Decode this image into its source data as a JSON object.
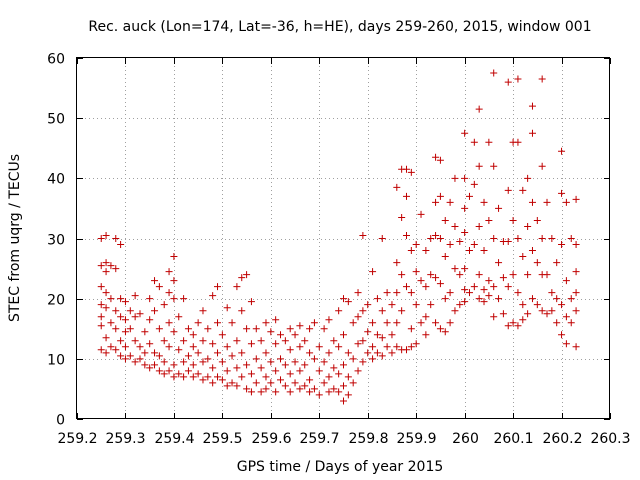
{
  "chart_data": {
    "type": "scatter",
    "title": "Rec. auck (Lon=174, Lat=-36, h=HE), days 259-260, 2015, window 001",
    "xlabel": "GPS time / Days of year 2015",
    "ylabel": "STEC from uqrg / TECUs",
    "xlim": [
      259.2,
      260.3
    ],
    "ylim": [
      0,
      60
    ],
    "xticks": [
      "259.2",
      "259.3",
      "259.4",
      "259.5",
      "259.6",
      "259.7",
      "259.8",
      "259.9",
      "260",
      "260.1",
      "260.2",
      "260.3"
    ],
    "yticks": [
      "0",
      "10",
      "20",
      "30",
      "40",
      "50",
      "60"
    ],
    "grid": true,
    "marker": "plus",
    "color": "#c00000",
    "points": [
      [
        259.25,
        30.0
      ],
      [
        259.25,
        25.5
      ],
      [
        259.25,
        22.0
      ],
      [
        259.25,
        19.0
      ],
      [
        259.25,
        17.0
      ],
      [
        259.25,
        15.5
      ],
      [
        259.25,
        11.5
      ],
      [
        259.26,
        30.5
      ],
      [
        259.26,
        26.0
      ],
      [
        259.26,
        24.5
      ],
      [
        259.26,
        21.0
      ],
      [
        259.26,
        18.5
      ],
      [
        259.26,
        13.5
      ],
      [
        259.26,
        11.0
      ],
      [
        259.27,
        25.5
      ],
      [
        259.27,
        20.0
      ],
      [
        259.27,
        16.0
      ],
      [
        259.27,
        12.0
      ],
      [
        259.28,
        30.0
      ],
      [
        259.28,
        25.0
      ],
      [
        259.28,
        18.0
      ],
      [
        259.28,
        15.0
      ],
      [
        259.28,
        11.5
      ],
      [
        259.29,
        29.0
      ],
      [
        259.29,
        20.0
      ],
      [
        259.29,
        17.0
      ],
      [
        259.29,
        13.0
      ],
      [
        259.29,
        10.5
      ],
      [
        259.3,
        19.5
      ],
      [
        259.3,
        16.5
      ],
      [
        259.3,
        14.5
      ],
      [
        259.3,
        12.0
      ],
      [
        259.3,
        10.0
      ],
      [
        259.31,
        18.0
      ],
      [
        259.31,
        15.0
      ],
      [
        259.31,
        10.5
      ],
      [
        259.32,
        20.5
      ],
      [
        259.32,
        17.0
      ],
      [
        259.32,
        13.0
      ],
      [
        259.32,
        9.5
      ],
      [
        259.33,
        17.5
      ],
      [
        259.33,
        12.0
      ],
      [
        259.33,
        10.0
      ],
      [
        259.34,
        14.5
      ],
      [
        259.34,
        11.0
      ],
      [
        259.34,
        9.0
      ],
      [
        259.35,
        20.0
      ],
      [
        259.35,
        16.5
      ],
      [
        259.35,
        12.5
      ],
      [
        259.35,
        8.5
      ],
      [
        259.36,
        23.0
      ],
      [
        259.36,
        18.0
      ],
      [
        259.36,
        11.0
      ],
      [
        259.36,
        9.0
      ],
      [
        259.37,
        22.0
      ],
      [
        259.37,
        15.0
      ],
      [
        259.37,
        10.5
      ],
      [
        259.37,
        8.0
      ],
      [
        259.38,
        19.0
      ],
      [
        259.38,
        13.0
      ],
      [
        259.38,
        9.5
      ],
      [
        259.38,
        7.5
      ],
      [
        259.39,
        24.5
      ],
      [
        259.39,
        21.0
      ],
      [
        259.39,
        16.0
      ],
      [
        259.39,
        12.0
      ],
      [
        259.39,
        8.0
      ],
      [
        259.4,
        27.0
      ],
      [
        259.4,
        23.0
      ],
      [
        259.4,
        20.0
      ],
      [
        259.4,
        14.5
      ],
      [
        259.4,
        9.0
      ],
      [
        259.4,
        7.0
      ],
      [
        259.41,
        17.0
      ],
      [
        259.41,
        11.5
      ],
      [
        259.41,
        7.5
      ],
      [
        259.42,
        20.0
      ],
      [
        259.42,
        13.0
      ],
      [
        259.42,
        9.5
      ],
      [
        259.42,
        7.0
      ],
      [
        259.43,
        15.0
      ],
      [
        259.43,
        10.5
      ],
      [
        259.43,
        8.0
      ],
      [
        259.44,
        14.0
      ],
      [
        259.44,
        12.0
      ],
      [
        259.44,
        9.0
      ],
      [
        259.44,
        7.0
      ],
      [
        259.45,
        16.0
      ],
      [
        259.45,
        11.0
      ],
      [
        259.45,
        7.5
      ],
      [
        259.46,
        18.0
      ],
      [
        259.46,
        13.0
      ],
      [
        259.46,
        9.5
      ],
      [
        259.46,
        6.5
      ],
      [
        259.47,
        15.0
      ],
      [
        259.47,
        10.0
      ],
      [
        259.47,
        7.0
      ],
      [
        259.48,
        20.5
      ],
      [
        259.48,
        12.5
      ],
      [
        259.48,
        8.5
      ],
      [
        259.48,
        6.0
      ],
      [
        259.49,
        22.0
      ],
      [
        259.49,
        16.0
      ],
      [
        259.49,
        11.0
      ],
      [
        259.49,
        7.0
      ],
      [
        259.5,
        14.0
      ],
      [
        259.5,
        9.5
      ],
      [
        259.5,
        6.5
      ],
      [
        259.51,
        18.5
      ],
      [
        259.51,
        12.0
      ],
      [
        259.51,
        8.0
      ],
      [
        259.51,
        5.5
      ],
      [
        259.52,
        16.0
      ],
      [
        259.52,
        10.5
      ],
      [
        259.52,
        6.0
      ],
      [
        259.53,
        22.0
      ],
      [
        259.53,
        13.0
      ],
      [
        259.53,
        8.5
      ],
      [
        259.53,
        5.5
      ],
      [
        259.54,
        23.5
      ],
      [
        259.54,
        18.0
      ],
      [
        259.54,
        11.0
      ],
      [
        259.54,
        7.0
      ],
      [
        259.55,
        24.0
      ],
      [
        259.55,
        15.0
      ],
      [
        259.55,
        9.0
      ],
      [
        259.55,
        5.0
      ],
      [
        259.56,
        19.5
      ],
      [
        259.56,
        12.5
      ],
      [
        259.56,
        7.5
      ],
      [
        259.56,
        4.5
      ],
      [
        259.57,
        15.0
      ],
      [
        259.57,
        10.0
      ],
      [
        259.57,
        6.0
      ],
      [
        259.58,
        13.0
      ],
      [
        259.58,
        8.5
      ],
      [
        259.58,
        4.5
      ],
      [
        259.59,
        16.0
      ],
      [
        259.59,
        11.0
      ],
      [
        259.59,
        7.0
      ],
      [
        259.59,
        5.0
      ],
      [
        259.6,
        14.5
      ],
      [
        259.6,
        9.5
      ],
      [
        259.6,
        6.0
      ],
      [
        259.61,
        16.5
      ],
      [
        259.61,
        12.5
      ],
      [
        259.61,
        8.0
      ],
      [
        259.61,
        4.5
      ],
      [
        259.62,
        14.0
      ],
      [
        259.62,
        10.0
      ],
      [
        259.62,
        6.5
      ],
      [
        259.63,
        13.0
      ],
      [
        259.63,
        9.0
      ],
      [
        259.63,
        5.5
      ],
      [
        259.64,
        15.0
      ],
      [
        259.64,
        11.5
      ],
      [
        259.64,
        7.5
      ],
      [
        259.64,
        4.5
      ],
      [
        259.65,
        14.0
      ],
      [
        259.65,
        9.5
      ],
      [
        259.65,
        6.0
      ],
      [
        259.66,
        15.5
      ],
      [
        259.66,
        12.0
      ],
      [
        259.66,
        8.0
      ],
      [
        259.66,
        5.0
      ],
      [
        259.67,
        13.0
      ],
      [
        259.67,
        9.0
      ],
      [
        259.67,
        5.5
      ],
      [
        259.68,
        15.0
      ],
      [
        259.68,
        11.0
      ],
      [
        259.68,
        6.5
      ],
      [
        259.68,
        4.5
      ],
      [
        259.69,
        16.0
      ],
      [
        259.69,
        10.0
      ],
      [
        259.69,
        5.0
      ],
      [
        259.7,
        12.0
      ],
      [
        259.7,
        8.0
      ],
      [
        259.7,
        4.0
      ],
      [
        259.71,
        15.0
      ],
      [
        259.71,
        9.5
      ],
      [
        259.71,
        6.0
      ],
      [
        259.72,
        16.5
      ],
      [
        259.72,
        11.0
      ],
      [
        259.72,
        7.0
      ],
      [
        259.72,
        4.5
      ],
      [
        259.73,
        13.0
      ],
      [
        259.73,
        8.5
      ],
      [
        259.73,
        5.0
      ],
      [
        259.74,
        18.0
      ],
      [
        259.74,
        12.0
      ],
      [
        259.74,
        7.5
      ],
      [
        259.74,
        4.5
      ],
      [
        259.75,
        20.0
      ],
      [
        259.75,
        14.0
      ],
      [
        259.75,
        9.0
      ],
      [
        259.75,
        5.5
      ],
      [
        259.75,
        3.0
      ],
      [
        259.76,
        19.5
      ],
      [
        259.76,
        11.0
      ],
      [
        259.76,
        7.0
      ],
      [
        259.76,
        4.0
      ],
      [
        259.77,
        16.0
      ],
      [
        259.77,
        10.0
      ],
      [
        259.77,
        6.0
      ],
      [
        259.78,
        21.0
      ],
      [
        259.78,
        17.0
      ],
      [
        259.78,
        12.5
      ],
      [
        259.78,
        8.0
      ],
      [
        259.79,
        30.5
      ],
      [
        259.79,
        18.0
      ],
      [
        259.79,
        13.0
      ],
      [
        259.79,
        9.5
      ],
      [
        259.8,
        19.0
      ],
      [
        259.8,
        14.5
      ],
      [
        259.8,
        11.0
      ],
      [
        259.81,
        24.5
      ],
      [
        259.81,
        16.0
      ],
      [
        259.81,
        12.0
      ],
      [
        259.81,
        10.0
      ],
      [
        259.82,
        20.0
      ],
      [
        259.82,
        14.0
      ],
      [
        259.82,
        11.0
      ],
      [
        259.83,
        30.0
      ],
      [
        259.83,
        18.0
      ],
      [
        259.83,
        13.5
      ],
      [
        259.83,
        10.5
      ],
      [
        259.84,
        21.0
      ],
      [
        259.84,
        16.0
      ],
      [
        259.84,
        12.0
      ],
      [
        259.85,
        19.0
      ],
      [
        259.85,
        14.0
      ],
      [
        259.85,
        11.0
      ],
      [
        259.86,
        38.5
      ],
      [
        259.86,
        26.0
      ],
      [
        259.86,
        21.0
      ],
      [
        259.86,
        16.0
      ],
      [
        259.86,
        12.0
      ],
      [
        259.87,
        41.5
      ],
      [
        259.87,
        33.5
      ],
      [
        259.87,
        24.0
      ],
      [
        259.87,
        18.0
      ],
      [
        259.87,
        11.5
      ],
      [
        259.88,
        41.5
      ],
      [
        259.88,
        37.0
      ],
      [
        259.88,
        30.5
      ],
      [
        259.88,
        22.0
      ],
      [
        259.88,
        11.5
      ],
      [
        259.89,
        41.0
      ],
      [
        259.89,
        28.0
      ],
      [
        259.89,
        21.0
      ],
      [
        259.89,
        15.0
      ],
      [
        259.89,
        12.0
      ],
      [
        259.9,
        29.0
      ],
      [
        259.9,
        24.5
      ],
      [
        259.9,
        19.0
      ],
      [
        259.9,
        12.5
      ],
      [
        259.91,
        34.0
      ],
      [
        259.91,
        23.0
      ],
      [
        259.91,
        16.0
      ],
      [
        259.92,
        28.0
      ],
      [
        259.92,
        22.0
      ],
      [
        259.92,
        17.0
      ],
      [
        259.92,
        14.0
      ],
      [
        259.93,
        30.0
      ],
      [
        259.93,
        24.0
      ],
      [
        259.93,
        19.0
      ],
      [
        259.94,
        43.5
      ],
      [
        259.94,
        36.0
      ],
      [
        259.94,
        30.5
      ],
      [
        259.94,
        23.5
      ],
      [
        259.94,
        16.0
      ],
      [
        259.95,
        43.0
      ],
      [
        259.95,
        37.0
      ],
      [
        259.95,
        30.0
      ],
      [
        259.95,
        22.5
      ],
      [
        259.95,
        15.0
      ],
      [
        259.96,
        33.0
      ],
      [
        259.96,
        27.0
      ],
      [
        259.96,
        20.0
      ],
      [
        259.96,
        14.5
      ],
      [
        259.97,
        36.0
      ],
      [
        259.97,
        29.0
      ],
      [
        259.97,
        21.0
      ],
      [
        259.97,
        16.0
      ],
      [
        259.98,
        40.0
      ],
      [
        259.98,
        32.0
      ],
      [
        259.98,
        25.0
      ],
      [
        259.98,
        18.0
      ],
      [
        259.99,
        29.5
      ],
      [
        259.99,
        24.0
      ],
      [
        259.99,
        19.0
      ],
      [
        260.0,
        47.5
      ],
      [
        260.0,
        40.0
      ],
      [
        260.0,
        35.0
      ],
      [
        260.0,
        31.0
      ],
      [
        260.0,
        25.0
      ],
      [
        260.0,
        21.5
      ],
      [
        260.0,
        19.5
      ],
      [
        260.01,
        37.0
      ],
      [
        260.01,
        28.0
      ],
      [
        260.01,
        21.0
      ],
      [
        260.02,
        46.0
      ],
      [
        260.02,
        39.0
      ],
      [
        260.02,
        29.0
      ],
      [
        260.02,
        22.0
      ],
      [
        260.03,
        51.5
      ],
      [
        260.03,
        42.0
      ],
      [
        260.03,
        32.0
      ],
      [
        260.03,
        24.0
      ],
      [
        260.03,
        20.0
      ],
      [
        260.04,
        36.0
      ],
      [
        260.04,
        28.0
      ],
      [
        260.04,
        21.5
      ],
      [
        260.04,
        19.5
      ],
      [
        260.05,
        46.0
      ],
      [
        260.05,
        33.0
      ],
      [
        260.05,
        23.0
      ],
      [
        260.05,
        20.5
      ],
      [
        260.06,
        57.5
      ],
      [
        260.06,
        42.0
      ],
      [
        260.06,
        30.0
      ],
      [
        260.06,
        22.0
      ],
      [
        260.06,
        17.0
      ],
      [
        260.07,
        35.0
      ],
      [
        260.07,
        26.0
      ],
      [
        260.07,
        20.0
      ],
      [
        260.08,
        29.5
      ],
      [
        260.08,
        23.5
      ],
      [
        260.08,
        17.5
      ],
      [
        260.09,
        56.0
      ],
      [
        260.09,
        38.0
      ],
      [
        260.09,
        29.5
      ],
      [
        260.09,
        22.0
      ],
      [
        260.09,
        15.5
      ],
      [
        260.1,
        46.0
      ],
      [
        260.1,
        33.0
      ],
      [
        260.1,
        24.0
      ],
      [
        260.1,
        16.0
      ],
      [
        260.11,
        56.5
      ],
      [
        260.11,
        46.0
      ],
      [
        260.11,
        30.0
      ],
      [
        260.11,
        21.0
      ],
      [
        260.11,
        15.5
      ],
      [
        260.12,
        38.0
      ],
      [
        260.12,
        27.0
      ],
      [
        260.12,
        19.0
      ],
      [
        260.12,
        16.5
      ],
      [
        260.13,
        40.0
      ],
      [
        260.13,
        32.0
      ],
      [
        260.13,
        24.0
      ],
      [
        260.13,
        17.5
      ],
      [
        260.14,
        52.0
      ],
      [
        260.14,
        47.5
      ],
      [
        260.14,
        36.0
      ],
      [
        260.14,
        28.0
      ],
      [
        260.14,
        20.0
      ],
      [
        260.15,
        33.0
      ],
      [
        260.15,
        26.0
      ],
      [
        260.15,
        19.0
      ],
      [
        260.16,
        56.5
      ],
      [
        260.16,
        42.0
      ],
      [
        260.16,
        30.0
      ],
      [
        260.16,
        24.0
      ],
      [
        260.16,
        18.0
      ],
      [
        260.17,
        36.0
      ],
      [
        260.17,
        24.0
      ],
      [
        260.17,
        17.5
      ],
      [
        260.18,
        30.0
      ],
      [
        260.18,
        21.0
      ],
      [
        260.18,
        18.0
      ],
      [
        260.19,
        26.0
      ],
      [
        260.19,
        20.0
      ],
      [
        260.19,
        16.0
      ],
      [
        260.2,
        44.5
      ],
      [
        260.2,
        37.5
      ],
      [
        260.2,
        29.0
      ],
      [
        260.2,
        19.0
      ],
      [
        260.2,
        14.0
      ],
      [
        260.21,
        36.0
      ],
      [
        260.21,
        23.0
      ],
      [
        260.21,
        17.0
      ],
      [
        260.21,
        12.5
      ],
      [
        260.22,
        30.0
      ],
      [
        260.22,
        20.0
      ],
      [
        260.22,
        16.0
      ],
      [
        260.23,
        36.5
      ],
      [
        260.23,
        29.0
      ],
      [
        260.23,
        24.5
      ],
      [
        260.23,
        21.0
      ],
      [
        260.23,
        18.0
      ],
      [
        260.23,
        12.0
      ]
    ]
  }
}
